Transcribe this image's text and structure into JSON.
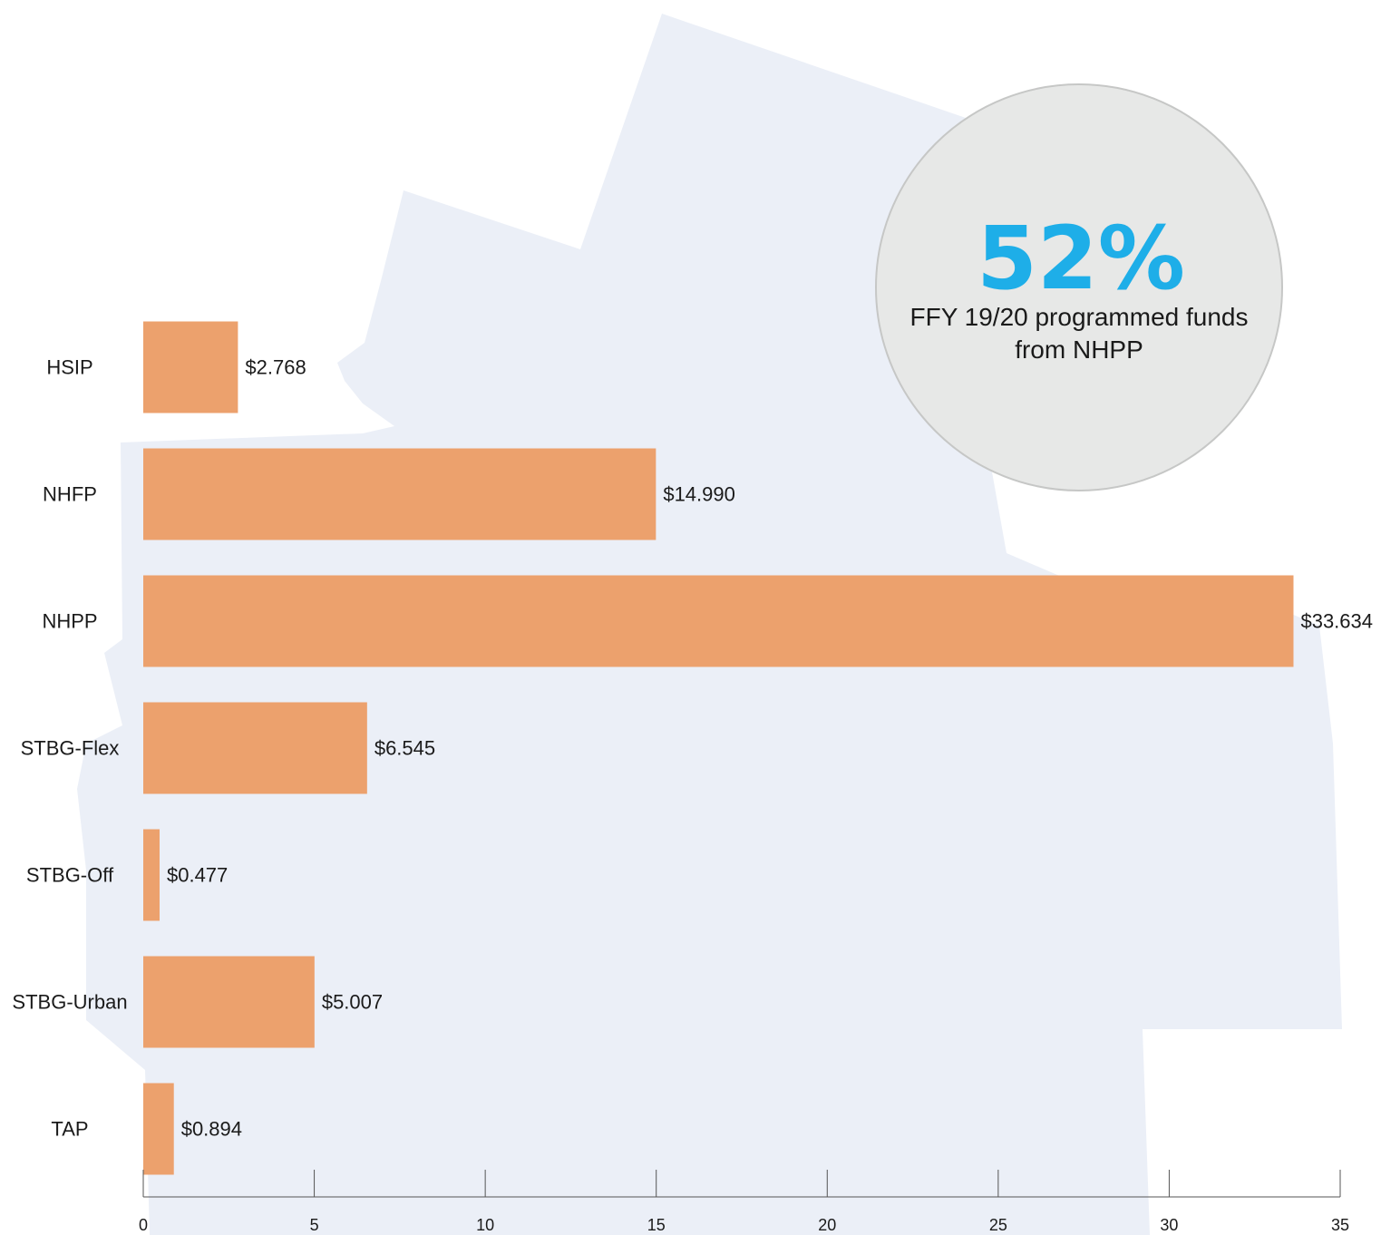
{
  "colors": {
    "bar": "#eca16d",
    "map_fill": "#ebeff7",
    "callout_fill": "#e7e8e7",
    "callout_stroke": "#c6c7c6",
    "callout_percent": "#1eaee8",
    "axis": "#555555"
  },
  "callout": {
    "percent": "52%",
    "line1": "FFY 19/20 programmed funds",
    "line2": "from NHPP"
  },
  "chart_data": {
    "type": "bar",
    "orientation": "horizontal",
    "categories": [
      "HSIP",
      "NHFP",
      "NHPP",
      "STBG-Flex",
      "STBG-Off",
      "STBG-Urban",
      "TAP"
    ],
    "values": [
      2.768,
      14.99,
      33.634,
      6.545,
      0.477,
      5.007,
      0.894
    ],
    "value_labels": [
      "$2.768",
      "$14.990",
      "$33.634",
      "$6.545",
      "$0.477",
      "$5.007",
      "$0.894"
    ],
    "xlim": [
      0,
      35
    ],
    "xticks": [
      0,
      5,
      10,
      15,
      20,
      25,
      30,
      35
    ],
    "title": "",
    "xlabel": "",
    "ylabel": "",
    "grid": false,
    "legend": "none"
  }
}
